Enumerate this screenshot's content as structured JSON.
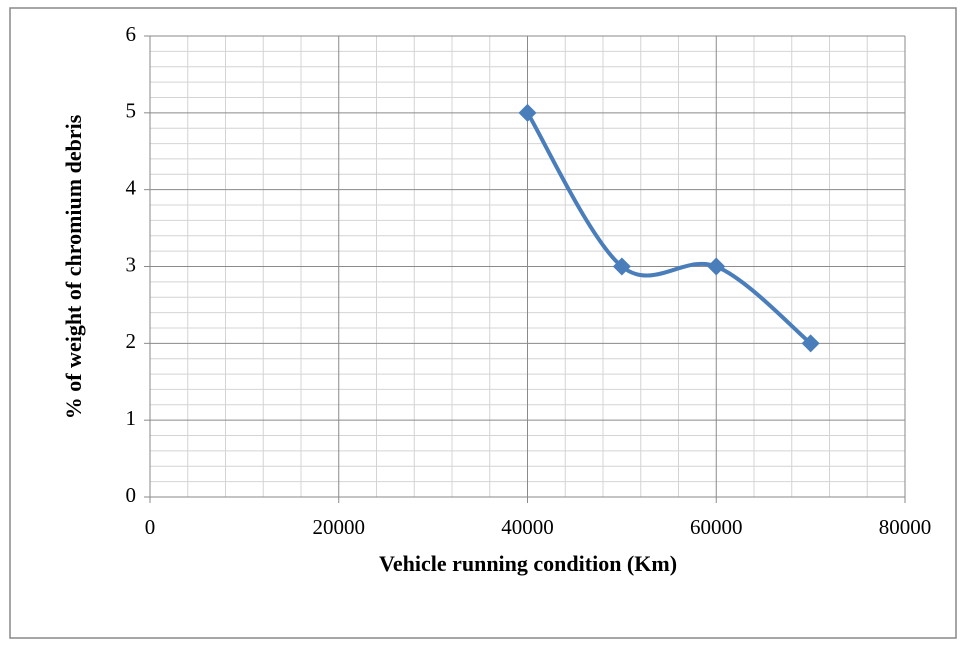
{
  "chart_data": {
    "type": "scatter",
    "smooth": true,
    "x_label": "Vehicle running condition (Km)",
    "y_label": "% of weight of chromium debris",
    "x": [
      40000,
      50000,
      60000,
      70000
    ],
    "series": [
      {
        "color": "#4a7ebb",
        "values": [
          5,
          3,
          3,
          2
        ]
      }
    ],
    "xlim": [
      0,
      80000
    ],
    "xticks": [
      0,
      20000,
      40000,
      60000,
      80000
    ],
    "ylim": [
      0,
      6
    ],
    "yticks": [
      0,
      1,
      2,
      3,
      4,
      5,
      6
    ],
    "grid": true,
    "minor_grid": true
  }
}
